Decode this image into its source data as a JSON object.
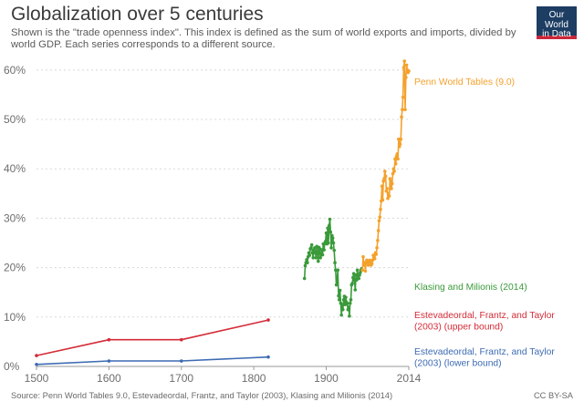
{
  "header": {
    "title": "Globalization over 5 centuries",
    "subtitle": "Shown is the \"trade openness index\". This index is defined as the sum of world exports and imports, divided by world GDP. Each series corresponds to a different source.",
    "logo_line1": "Our World",
    "logo_line2": "in Data"
  },
  "footer": {
    "source": "Source: Penn World Tables 9.0, Estevadeordal, Frantz, and Taylor (2003), Klasing and Milionis (2014)",
    "license": "CC BY-SA"
  },
  "chart_data": {
    "type": "line",
    "title": "Globalization over 5 centuries",
    "xlabel": "",
    "ylabel": "",
    "xlim": [
      1500,
      2014
    ],
    "ylim": [
      0,
      62
    ],
    "x_ticks": [
      1500,
      1600,
      1700,
      1800,
      1900,
      2014
    ],
    "x_tick_labels": [
      "1500",
      "1600",
      "1700",
      "1800",
      "1900",
      "2014"
    ],
    "y_ticks": [
      0,
      10,
      20,
      30,
      40,
      50,
      60
    ],
    "y_tick_labels": [
      "0%",
      "10%",
      "20%",
      "30%",
      "40%",
      "50%",
      "60%"
    ],
    "grid": "horizontal dotted",
    "series": [
      {
        "name": "Estevadeordal, Frantz, and Taylor (2003) (upper bound)",
        "label_lines": [
          "Estevadeordal, Frantz, and Taylor",
          "(2003) (upper bound)"
        ],
        "color": "#d42b37",
        "x": [
          1500,
          1600,
          1700,
          1820
        ],
        "y": [
          2.2,
          5.4,
          5.4,
          9.4
        ]
      },
      {
        "name": "Estevadeordal, Frantz, and Taylor (2003) (lower bound)",
        "label_lines": [
          "Estevadeordal, Frantz, and Taylor",
          "(2003) (lower bound)"
        ],
        "color": "#3d6bb3",
        "x": [
          1500,
          1600,
          1700,
          1820
        ],
        "y": [
          0.4,
          1.1,
          1.1,
          1.9
        ]
      },
      {
        "name": "Klasing and Milionis (2014)",
        "label_lines": [
          "Klasing and Milionis (2014)"
        ],
        "color": "#3a9a3a",
        "x": [
          1870,
          1871,
          1872,
          1873,
          1874,
          1875,
          1876,
          1877,
          1878,
          1879,
          1880,
          1881,
          1882,
          1883,
          1884,
          1885,
          1886,
          1887,
          1888,
          1889,
          1890,
          1891,
          1892,
          1893,
          1894,
          1895,
          1896,
          1897,
          1898,
          1899,
          1900,
          1901,
          1902,
          1903,
          1904,
          1905,
          1906,
          1907,
          1908,
          1909,
          1910,
          1911,
          1912,
          1913,
          1914,
          1915,
          1916,
          1917,
          1918,
          1919,
          1920,
          1921,
          1922,
          1923,
          1924,
          1925,
          1926,
          1927,
          1928,
          1929,
          1930,
          1931,
          1932,
          1933,
          1934,
          1935,
          1936,
          1937,
          1938,
          1939,
          1940,
          1941,
          1942,
          1943,
          1944,
          1945,
          1946,
          1947,
          1948,
          1949
        ],
        "y": [
          17.8,
          20.4,
          21.0,
          21.6,
          21.0,
          22.2,
          23.0,
          22.5,
          23.8,
          24.0,
          24.6,
          23.0,
          22.0,
          23.5,
          24.0,
          23.0,
          22.0,
          24.3,
          23.2,
          21.3,
          24.1,
          23.8,
          22.0,
          22.6,
          23.6,
          22.6,
          24.8,
          23.6,
          24.9,
          25.3,
          27.0,
          24.8,
          28.0,
          25.0,
          28.5,
          29.8,
          27.2,
          24.0,
          26.5,
          26.0,
          25.0,
          23.5,
          21.0,
          19.5,
          16.5,
          17.2,
          19.5,
          14.3,
          13.5,
          15.4,
          12.8,
          10.4,
          12.5,
          11.5,
          13.5,
          14.2,
          12.5,
          14.0,
          13.0,
          12.7,
          11.5,
          12.0,
          10.2,
          12.8,
          13.5,
          16.5,
          16.8,
          18.0,
          18.8,
          17.4,
          15.5,
          18.5,
          17.5,
          19.5,
          18.5,
          17.8,
          18.5,
          19.0,
          19.5,
          19.8
        ]
      },
      {
        "name": "Penn World Tables (9.0)",
        "label_lines": [
          "Penn World Tables (9.0)"
        ],
        "color": "#f4a12c",
        "x": [
          1950,
          1951,
          1952,
          1953,
          1954,
          1955,
          1956,
          1957,
          1958,
          1959,
          1960,
          1961,
          1962,
          1963,
          1964,
          1965,
          1966,
          1967,
          1968,
          1969,
          1970,
          1971,
          1972,
          1973,
          1974,
          1975,
          1976,
          1977,
          1978,
          1979,
          1980,
          1981,
          1982,
          1983,
          1984,
          1985,
          1986,
          1987,
          1988,
          1989,
          1990,
          1991,
          1992,
          1993,
          1994,
          1995,
          1996,
          1997,
          1998,
          1999,
          2000,
          2001,
          2002,
          2003,
          2004,
          2005,
          2006,
          2007,
          2008,
          2009,
          2010,
          2011,
          2012,
          2013,
          2014
        ],
        "y": [
          19.5,
          22.2,
          20.5,
          21.0,
          19.3,
          21.0,
          21.5,
          21.0,
          20.5,
          21.2,
          21.5,
          21.0,
          20.5,
          20.8,
          21.5,
          22.5,
          22.0,
          21.8,
          23.0,
          22.7,
          24.0,
          25.5,
          27.5,
          29.5,
          30.2,
          31.8,
          33.5,
          36.5,
          33.7,
          37.5,
          38.0,
          39.5,
          38.5,
          35.5,
          36.0,
          34.0,
          35.0,
          34.5,
          38.0,
          37.5,
          36.0,
          37.0,
          39.0,
          40.0,
          39.5,
          42.0,
          41.0,
          42.5,
          43.0,
          42.0,
          46.0,
          44.5,
          45.0,
          46.0,
          50.5,
          52.0,
          54.5,
          60.5,
          61.8,
          52.0,
          58.5,
          61.0,
          60.0,
          59.5,
          59.8
        ]
      }
    ]
  }
}
